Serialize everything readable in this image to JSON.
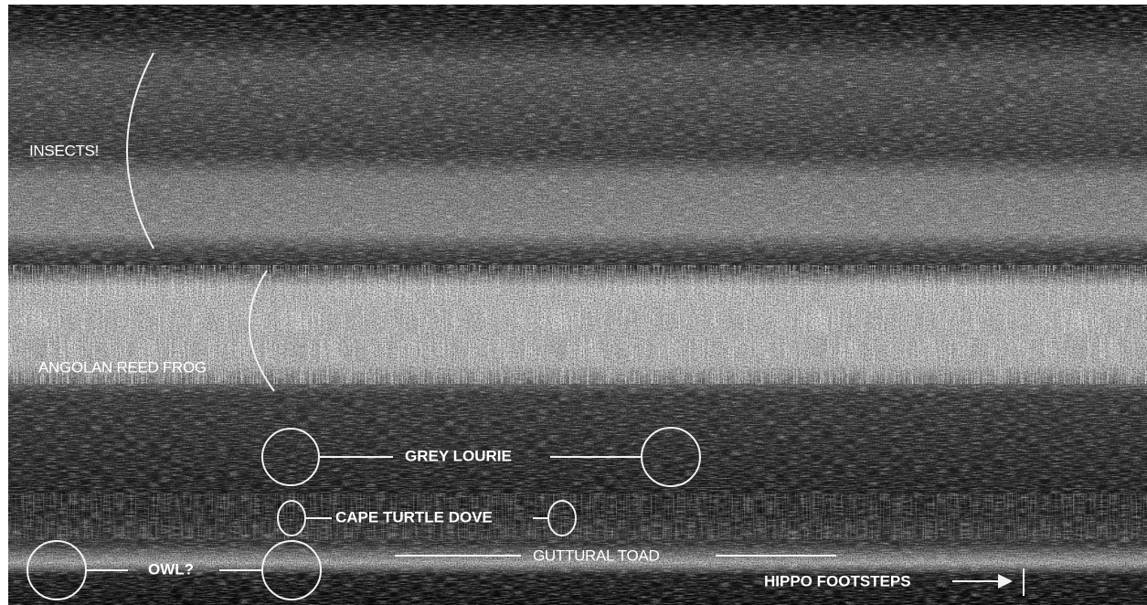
{
  "labels": [
    "INSECTS!",
    "ANGOLAN REED FROG",
    "GREY LOURIE",
    "CAPE TURTLE DOVE",
    "GUTTURAL TOAD",
    "OWL?",
    "HIPPO FOOTSTEPS"
  ]
}
